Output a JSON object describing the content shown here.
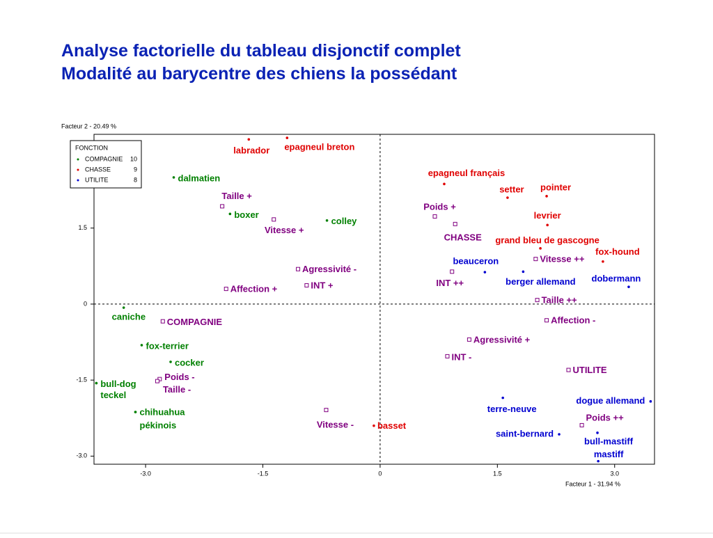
{
  "header": {
    "title_lines": [
      "Analyse factorielle du tableau disjonctif complet",
      "Modalité au barycentre des chiens la possédant"
    ]
  },
  "chart_data": {
    "type": "scatter",
    "y_label": "Facteur 2  -  20.49 %",
    "x_label": "Facteur 1  -  31.94 %",
    "xlim": [
      -3.66,
      3.51
    ],
    "ylim": [
      -3.16,
      3.35
    ],
    "xticks": [
      {
        "value": -3,
        "label": "-3.0"
      },
      {
        "value": -1.5,
        "label": "-1.5"
      },
      0,
      {
        "value": 1.5,
        "label": "1.5"
      },
      {
        "value": 3,
        "label": "3.0"
      }
    ],
    "yticks": [
      {
        "value": -3,
        "label": "-3.0"
      },
      {
        "value": -1.5,
        "label": "-1.5"
      },
      0,
      {
        "value": 1.5,
        "label": "1.5"
      }
    ],
    "legend_title": "FONCTION",
    "legend_position": "upper left",
    "series": [
      {
        "name": "COMPAGNIE",
        "count": 10,
        "color": "#008000",
        "marker": "dot",
        "labels": [
          "dalmatien",
          "boxer",
          "colley",
          "caniche",
          "fox-terrier",
          "cocker",
          "bull-dog",
          "teckel",
          "chihuahua",
          "pékinois"
        ],
        "x": [
          -2.64,
          -1.92,
          -0.68,
          -3.28,
          -3.05,
          -2.68,
          -3.63,
          -3.63,
          -3.13,
          -3.13
        ],
        "values": [
          2.5,
          1.78,
          1.65,
          -0.07,
          -0.81,
          -1.14,
          -1.56,
          -1.56,
          -2.13,
          -2.13
        ]
      },
      {
        "name": "CHASSE",
        "count": 9,
        "color": "#e00000",
        "marker": "dot",
        "labels": [
          "labrador",
          "epagneul breton",
          "epagneul français",
          "setter",
          "pointer",
          "levrier",
          "grand bleu de gascogne",
          "fox-hound",
          "basset"
        ],
        "x": [
          -1.68,
          -1.19,
          0.82,
          1.63,
          2.13,
          2.14,
          2.05,
          2.85,
          -0.08
        ],
        "values": [
          3.25,
          3.28,
          2.37,
          2.1,
          2.13,
          1.56,
          1.1,
          0.84,
          -2.4
        ]
      },
      {
        "name": "UTILITE",
        "count": 8,
        "color": "#0000d0",
        "marker": "dot",
        "labels": [
          "beauceron",
          "berger allemand",
          "dobermann",
          "terre-neuve",
          "saint-bernard",
          "dogue allemand",
          "bull-mastiff",
          "mastiff"
        ],
        "x": [
          1.34,
          1.83,
          3.18,
          1.57,
          2.29,
          3.46,
          2.78,
          2.79
        ],
        "values": [
          0.63,
          0.64,
          0.34,
          -1.85,
          -2.57,
          -1.92,
          -2.54,
          -3.1
        ]
      },
      {
        "color": "#800080",
        "marker": "square",
        "labels": [
          "Taille +",
          "Vitesse +",
          "Agressivité -",
          "INT +",
          "Affection +",
          "COMPAGNIE",
          "Poids -",
          "Taille -",
          "Vitesse -",
          "Poids +",
          "CHASSE",
          "Vitesse ++",
          "INT ++",
          "Taille ++",
          "Affection -",
          "Agressivité +",
          "INT -",
          "UTILITE",
          "Poids ++"
        ],
        "x": [
          -2.02,
          -1.36,
          -1.05,
          -0.94,
          -1.97,
          -2.78,
          -2.82,
          -2.85,
          -0.69,
          0.7,
          0.96,
          1.99,
          0.92,
          2.01,
          2.13,
          1.14,
          0.86,
          2.41,
          2.58
        ],
        "values": [
          1.93,
          1.67,
          0.69,
          0.37,
          0.3,
          -0.34,
          -1.48,
          -1.52,
          -2.09,
          1.73,
          1.58,
          0.89,
          0.64,
          0.08,
          -0.32,
          -0.7,
          -1.03,
          -1.3,
          -2.39
        ]
      }
    ]
  }
}
